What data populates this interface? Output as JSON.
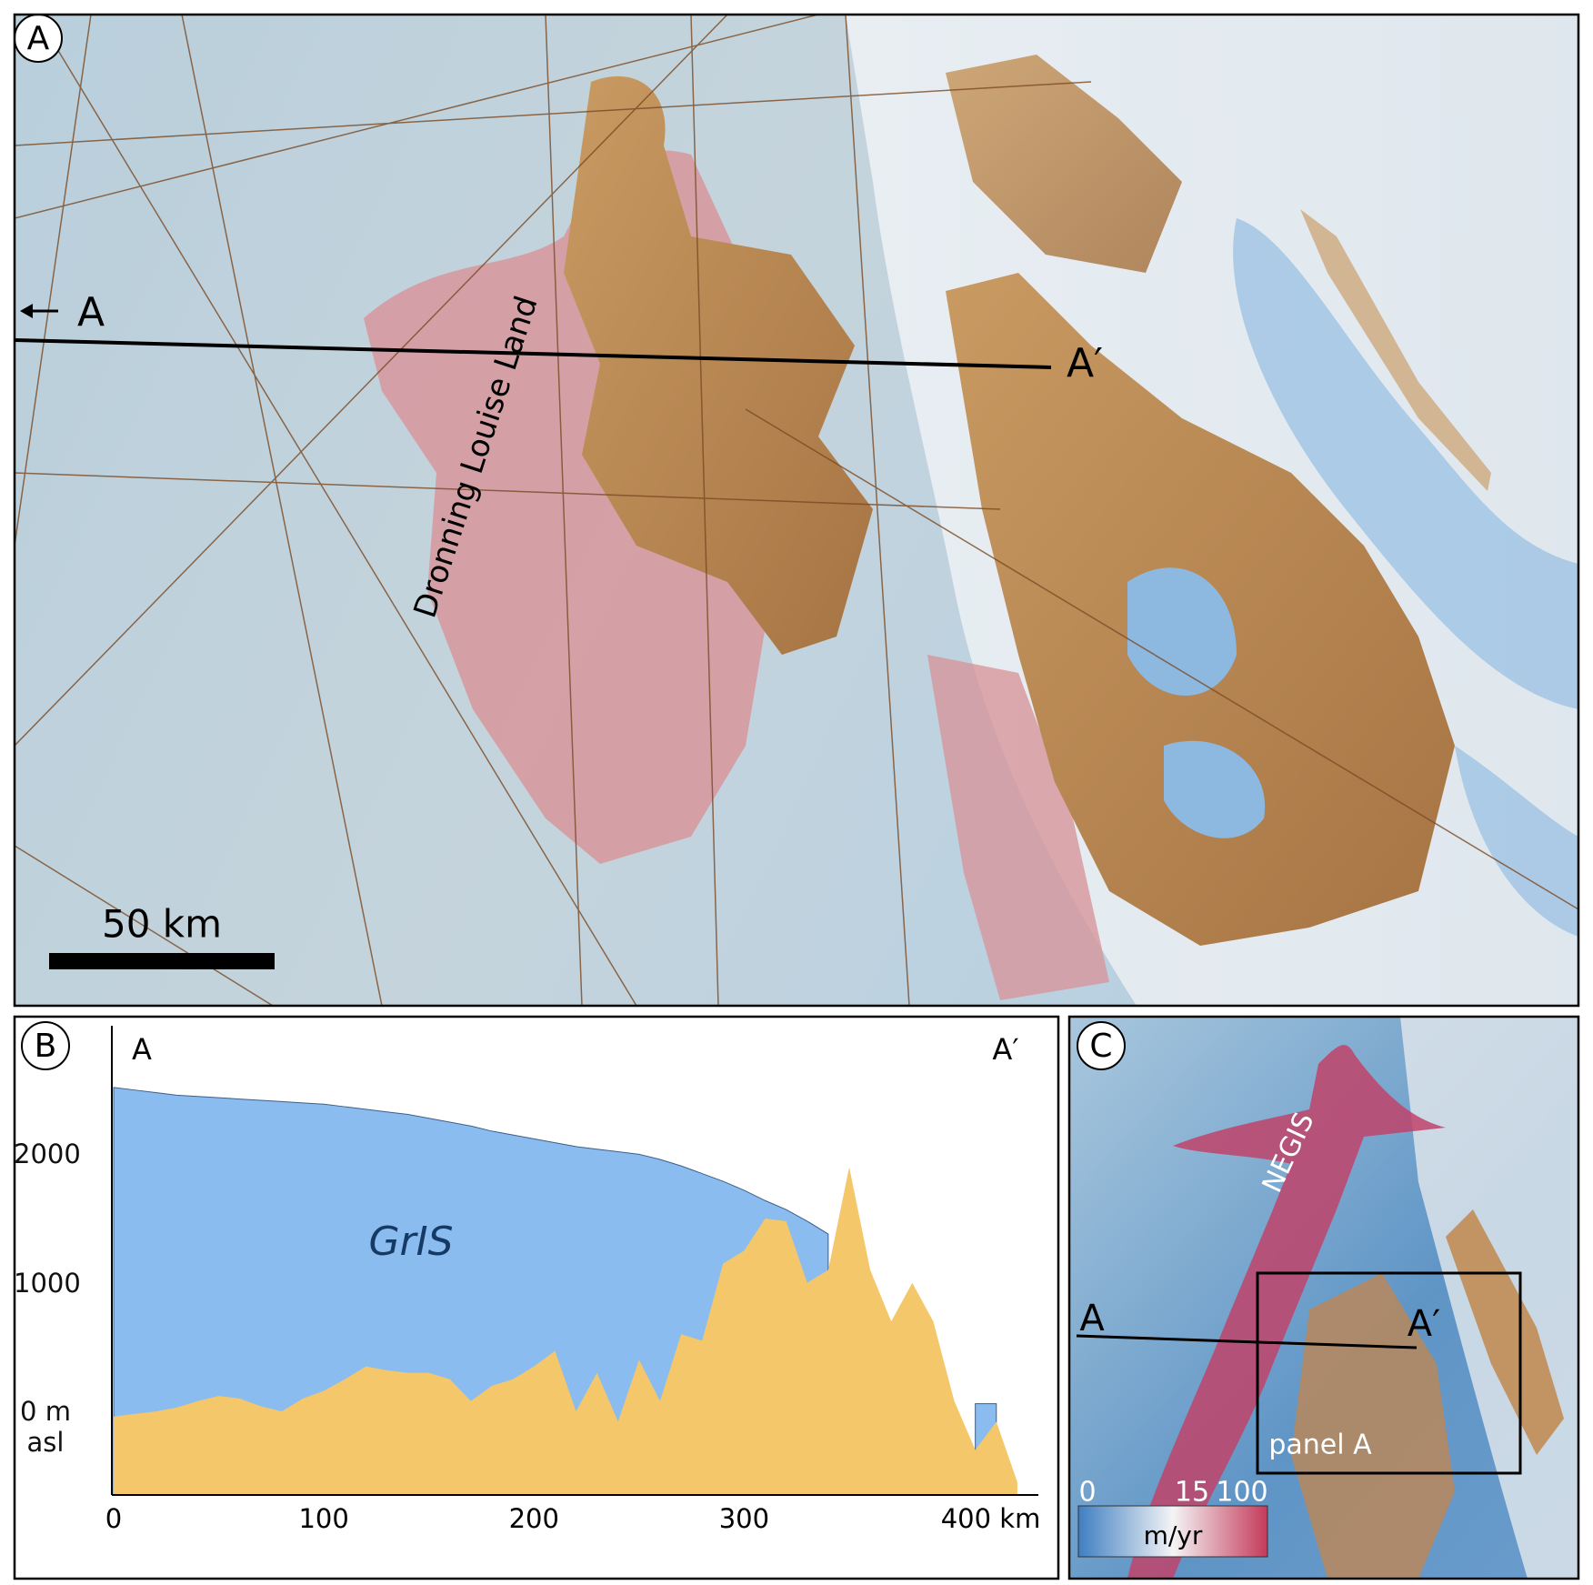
{
  "panel_a": {
    "label": "A",
    "section_start": "A",
    "section_end": "A′",
    "place_label": "Dronning Louise Land",
    "scale_bar": "50 km"
  },
  "chart_data": {
    "type": "area",
    "panel_label": "B",
    "start_label": "A",
    "end_label": "A′",
    "annotation": "GrIS",
    "x": [
      0,
      10,
      20,
      30,
      40,
      50,
      60,
      70,
      80,
      90,
      100,
      110,
      120,
      130,
      140,
      150,
      160,
      170,
      180,
      190,
      200,
      210,
      220,
      230,
      240,
      250,
      260,
      270,
      280,
      290,
      300,
      310,
      320,
      330,
      340,
      350,
      360,
      370,
      380,
      390,
      400,
      410,
      420,
      430
    ],
    "series": [
      {
        "color": "#8bbcef",
        "values": [
          2520,
          2500,
          2480,
          2460,
          2450,
          2440,
          2430,
          2420,
          2410,
          2400,
          2390,
          2370,
          2350,
          2330,
          2310,
          2280,
          2250,
          2220,
          2180,
          2150,
          2120,
          2090,
          2060,
          2040,
          2020,
          2000,
          1960,
          1910,
          1850,
          1790,
          1720,
          1640,
          1570,
          1480,
          1380,
          null,
          null,
          null,
          null,
          null,
          null,
          60,
          60,
          null
        ]
      },
      {
        "color": "#f5c76b",
        "values": [
          -40,
          -20,
          0,
          30,
          80,
          120,
          100,
          40,
          0,
          100,
          160,
          250,
          350,
          320,
          300,
          300,
          250,
          80,
          200,
          250,
          350,
          470,
          0,
          300,
          -80,
          400,
          80,
          600,
          550,
          1150,
          1250,
          1500,
          1480,
          1000,
          1100,
          1900,
          1100,
          700,
          1000,
          700,
          80,
          -300,
          -80,
          -550
        ]
      }
    ],
    "xlim": [
      0,
      440
    ],
    "ylim": [
      -650,
      3000
    ],
    "xticks": [
      0,
      100,
      200,
      300,
      {
        "value": 400,
        "label": "400 km"
      }
    ],
    "yticks": [
      {
        "value": 0,
        "label": "0 m asl"
      },
      1000,
      2000
    ]
  },
  "panel_c": {
    "label": "C",
    "section_start": "A",
    "section_end": "A′",
    "stream_label": "NEGIS",
    "inset_label": "panel A",
    "colorbar": {
      "ticks": [
        0,
        15,
        100
      ],
      "unit": "m/yr"
    }
  }
}
